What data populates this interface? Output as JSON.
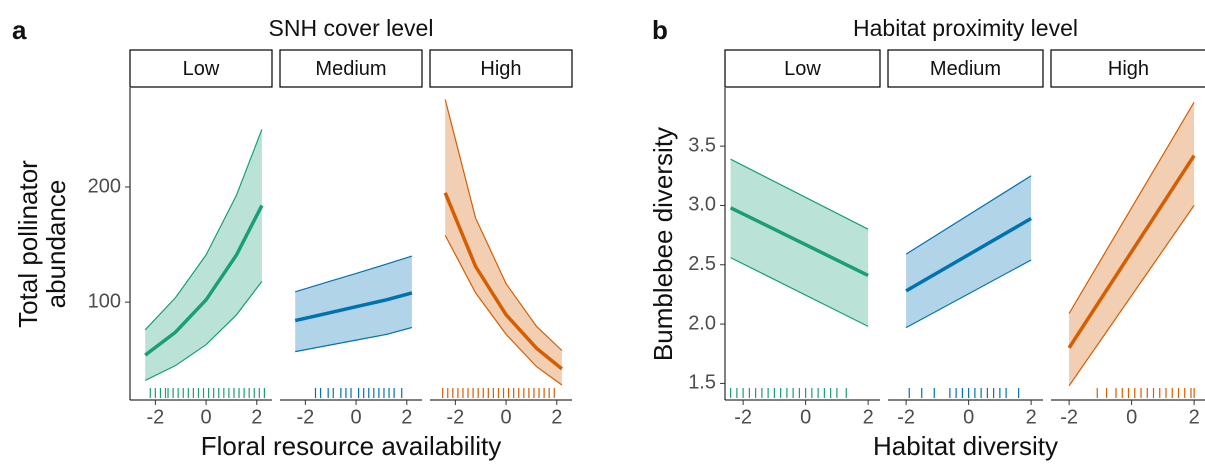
{
  "chart_data": [
    {
      "type": "line",
      "panel_label": "a",
      "title": "SNH cover level",
      "xlabel": "Floral resource availability",
      "ylabel": [
        "Total pollinator",
        "abundance"
      ],
      "xlim": [
        -3,
        2.6
      ],
      "ylim": [
        15,
        286
      ],
      "xticks": [
        -2,
        0,
        2
      ],
      "yticks": [
        100,
        200
      ],
      "facets": [
        {
          "name": "Low",
          "color": "#1b9e77",
          "x": [
            -2.4,
            -1.2,
            0,
            1.2,
            2.2
          ],
          "values": [
            54,
            74,
            102,
            141,
            184
          ],
          "lower": [
            32,
            45,
            63,
            89,
            118
          ],
          "upper": [
            76,
            104,
            141,
            193,
            250
          ],
          "rug": [
            -2.2,
            -2.0,
            -1.8,
            -1.6,
            -1.5,
            -1.3,
            -1.1,
            -0.9,
            -0.7,
            -0.5,
            -0.3,
            -0.1,
            0.1,
            0.3,
            0.5,
            0.7,
            0.9,
            1.1,
            1.3,
            1.5,
            1.7,
            1.9,
            2.1,
            2.3
          ]
        },
        {
          "name": "Medium",
          "color": "#0072b2",
          "x": [
            -2.4,
            -1.2,
            0,
            1.2,
            2.2
          ],
          "values": [
            84,
            90,
            96,
            102,
            108
          ],
          "lower": [
            57,
            62,
            67,
            72,
            78
          ],
          "upper": [
            109,
            117,
            125,
            133,
            140
          ],
          "rug": [
            -1.6,
            -1.4,
            -1.1,
            -0.9,
            -0.6,
            -0.4,
            -0.2,
            0.1,
            0.3,
            0.5,
            0.7,
            0.9,
            1.1,
            1.3,
            1.5,
            1.8
          ]
        },
        {
          "name": "High",
          "color": "#d55e00",
          "x": [
            -2.4,
            -1.2,
            0,
            1.2,
            2.2
          ],
          "values": [
            195,
            131,
            89,
            60,
            42
          ],
          "lower": [
            158,
            108,
            72,
            44,
            28
          ],
          "upper": [
            276,
            173,
            116,
            79,
            58
          ],
          "rug": [
            -2.5,
            -2.3,
            -2.1,
            -1.9,
            -1.7,
            -1.5,
            -1.3,
            -1.1,
            -0.9,
            -0.7,
            -0.5,
            -0.3,
            -0.1,
            0.1,
            0.3,
            0.5,
            0.7,
            0.9,
            1.1,
            1.3,
            1.5,
            1.7,
            1.9
          ]
        }
      ]
    },
    {
      "type": "line",
      "panel_label": "b",
      "title": "Habitat proximity level",
      "xlabel": "Habitat diversity",
      "ylabel": [
        "Bumblebee diversity"
      ],
      "xlim": [
        -2.58,
        2.38
      ],
      "ylim": [
        1.36,
        3.99
      ],
      "xticks": [
        -2,
        0,
        2
      ],
      "yticks": [
        {
          "value": 1.5,
          "label": "1.5"
        },
        {
          "value": 2,
          "label": "2.0"
        },
        {
          "value": 2.5,
          "label": "2.5"
        },
        {
          "value": 3,
          "label": "3.0"
        },
        {
          "value": 3.5,
          "label": "3.5"
        }
      ],
      "facets": [
        {
          "name": "Low",
          "color": "#1b9e77",
          "x": [
            -2.4,
            2
          ],
          "values": [
            2.98,
            2.41
          ],
          "lower": [
            2.56,
            1.98
          ],
          "upper": [
            3.39,
            2.8
          ],
          "rug": [
            -2.4,
            -2.2,
            -2.0,
            -1.8,
            -1.6,
            -1.4,
            -1.2,
            -1.0,
            -0.8,
            -0.6,
            -0.4,
            -0.2,
            0.0,
            0.2,
            0.4,
            0.6,
            0.8,
            1.0,
            1.3
          ]
        },
        {
          "name": "Medium",
          "color": "#0072b2",
          "x": [
            -2,
            2
          ],
          "values": [
            2.28,
            2.89
          ],
          "lower": [
            1.97,
            2.54
          ],
          "upper": [
            2.59,
            3.25
          ],
          "rug": [
            -1.9,
            -1.5,
            -1.1,
            -0.6,
            -0.4,
            -0.2,
            0.0,
            0.2,
            0.4,
            0.6,
            0.8,
            1.0,
            1.2,
            1.6
          ]
        },
        {
          "name": "High",
          "color": "#d55e00",
          "x": [
            -2,
            2
          ],
          "values": [
            1.8,
            3.42
          ],
          "lower": [
            1.48,
            3.0
          ],
          "upper": [
            2.09,
            3.87
          ],
          "rug": [
            -1.1,
            -0.8,
            -0.5,
            -0.3,
            -0.1,
            0.1,
            0.3,
            0.5,
            0.7,
            0.9,
            1.1,
            1.3,
            1.5,
            1.7,
            1.9,
            2.0
          ]
        }
      ]
    }
  ]
}
